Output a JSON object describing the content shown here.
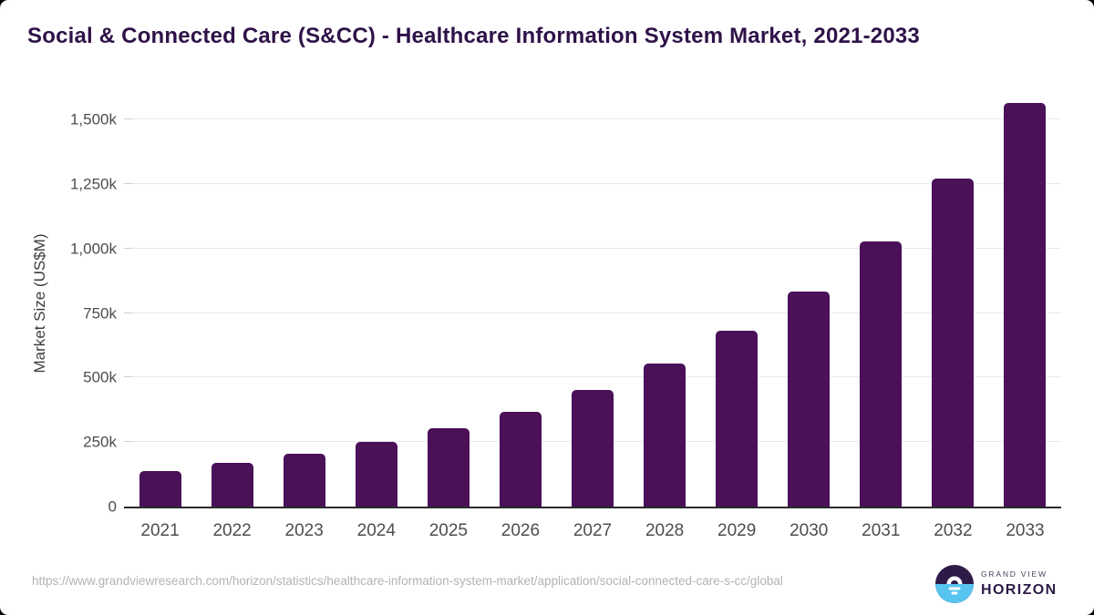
{
  "chart_data": {
    "type": "bar",
    "title": "Social & Connected Care (S&CC) - Healthcare Information System Market, 2021-2033",
    "xlabel": "",
    "ylabel": "Market Size (US$M)",
    "categories": [
      "2021",
      "2022",
      "2023",
      "2024",
      "2025",
      "2026",
      "2027",
      "2028",
      "2029",
      "2030",
      "2031",
      "2032",
      "2033"
    ],
    "values": [
      137,
      168,
      204,
      249,
      304,
      368,
      451,
      553,
      680,
      834,
      1026,
      1270,
      1564
    ],
    "values_note": "values in thousands of US$M, matching the k-suffixed axis labels (estimated from bar heights)",
    "ytick_labels": [
      "0",
      "250k",
      "500k",
      "750k",
      "1,000k",
      "1,250k",
      "1,500k"
    ],
    "ytick_values": [
      0,
      250,
      500,
      750,
      1000,
      1250,
      1500
    ],
    "ylim": [
      0,
      1570
    ],
    "grid": "horizontal",
    "legend": "none",
    "bar_color": "#4a1158"
  },
  "footer": {
    "source_url": "https://www.grandviewresearch.com/horizon/statistics/healthcare-information-system-market/application/social-connected-care-s-cc/global",
    "logo": {
      "icon": "horizon-sunrise-icon",
      "brand_top": "GRAND VIEW",
      "brand_bottom": "HORIZON"
    }
  },
  "colors": {
    "background": "#ffffff",
    "title_text": "#2e1248",
    "bar": "#4a1158",
    "grid_line": "#e9e9ed",
    "axis_line": "#2a2a2e",
    "axis_text": "#4d4d4d",
    "footer_text": "#b3b3b3",
    "logo_purple": "#2e1a47",
    "logo_blue": "#57c5f0"
  }
}
